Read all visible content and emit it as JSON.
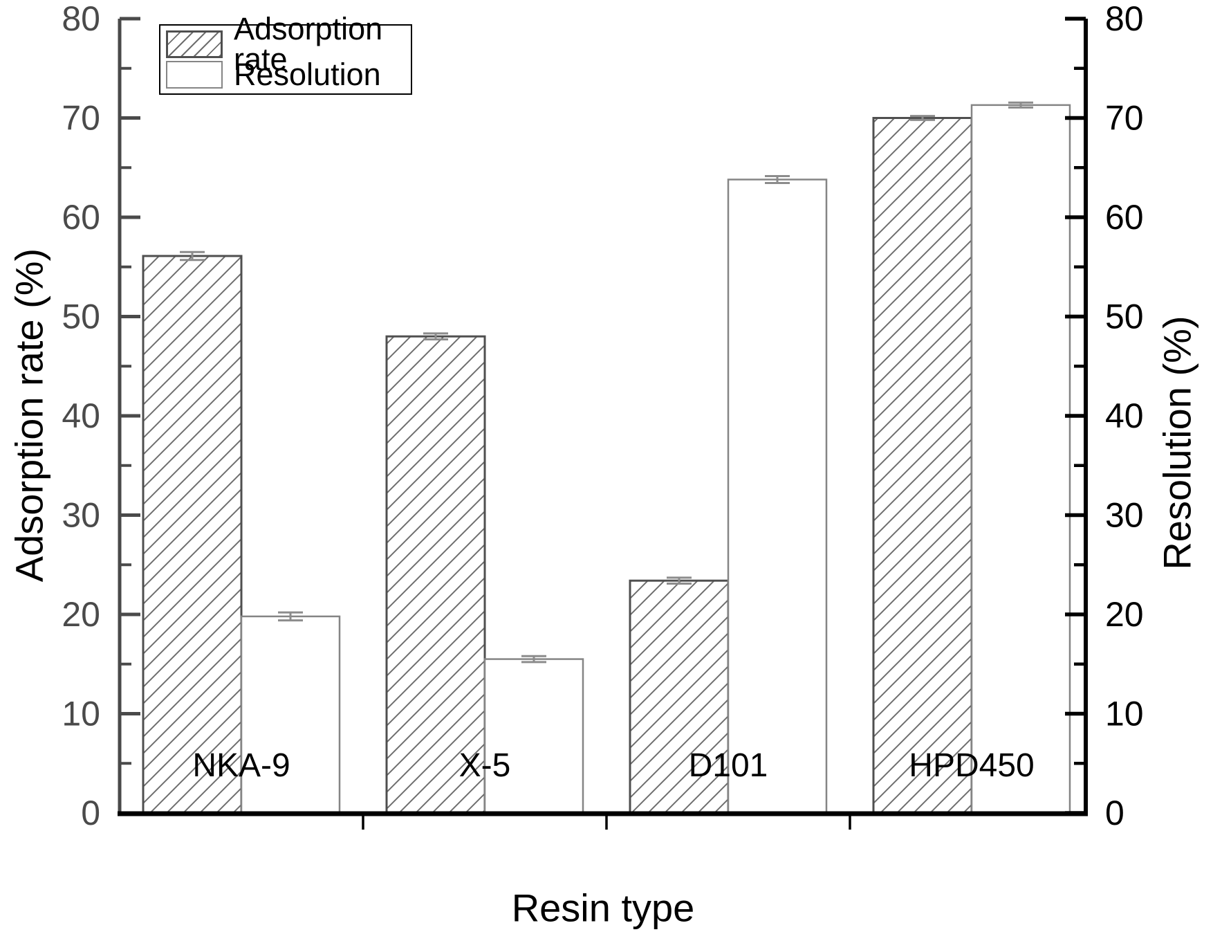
{
  "chart_data": {
    "type": "bar",
    "categories": [
      "NKA-9",
      "X-5",
      "D101",
      "HPD450"
    ],
    "series": [
      {
        "name": "Adsorption rate",
        "axis": "left",
        "style": "hatched",
        "values": [
          56.1,
          48.0,
          23.4,
          70.0
        ],
        "errors": [
          0.4,
          0.3,
          0.3,
          0.2
        ]
      },
      {
        "name": "Resolution",
        "axis": "right",
        "style": "plain",
        "values": [
          19.8,
          15.5,
          63.8,
          71.3
        ],
        "errors": [
          0.4,
          0.3,
          0.35,
          0.25
        ]
      }
    ],
    "xlabel": "Resin type",
    "ylabel_left": "Adsorption rate (%)",
    "ylabel_right": "Resolution (%)",
    "ylim": [
      0,
      80
    ],
    "ytick_major": 10,
    "ytick_minor": 5,
    "left_tick_labels": [
      "0",
      "10",
      "20",
      "30",
      "40",
      "50",
      "60",
      "70",
      "80"
    ],
    "right_tick_labels": [
      "0",
      "10",
      "20",
      "30",
      "40",
      "50",
      "60",
      "70",
      "80"
    ],
    "legend_position": "top-left",
    "grid": false,
    "error_bars": true
  },
  "colors": {
    "background": "#ffffff",
    "left_axis": "#4a4a4a",
    "right_axis": "#000000",
    "bottom_axis": "#000000",
    "bar_outline_hatched": "#4f4f4f",
    "bar_outline_plain": "#858585",
    "hatch_line": "#6e6e6e",
    "error_bar": "#8c8c8c",
    "category_label": "#000000",
    "text": "#000000"
  }
}
